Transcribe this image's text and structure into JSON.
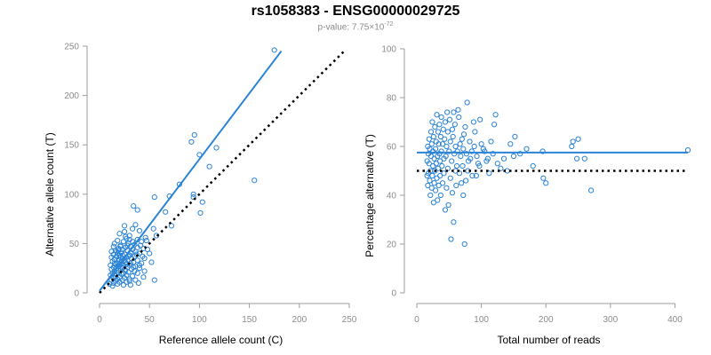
{
  "title": "rs1058383 - ENSG00000029725",
  "subtitle_prefix": "p-value: 7.75×10",
  "subtitle_exponent": "-72",
  "colors": {
    "point": "#2b83d6",
    "fit": "#2b83d6",
    "reference": "#000000",
    "axis": "#9e9e9e"
  },
  "chart_data": [
    {
      "type": "scatter",
      "xlabel": "Reference allele count (C)",
      "ylabel": "Alternative allele count (T)",
      "xlim": [
        0,
        250
      ],
      "ylim": [
        0,
        250
      ],
      "x_ticks": [
        0,
        50,
        100,
        150,
        200,
        250
      ],
      "y_ticks": [
        0,
        50,
        100,
        150,
        200,
        250
      ],
      "fit_line": {
        "x": [
          0,
          182
        ],
        "y": [
          2,
          245
        ]
      },
      "reference_line": {
        "x": [
          0,
          245
        ],
        "y": [
          0,
          245
        ]
      },
      "points": [
        [
          175,
          246
        ],
        [
          95,
          160
        ],
        [
          92,
          153
        ],
        [
          100,
          140
        ],
        [
          117,
          147
        ],
        [
          110,
          128
        ],
        [
          155,
          114
        ],
        [
          80,
          110
        ],
        [
          70,
          98
        ],
        [
          55,
          97
        ],
        [
          94,
          100
        ],
        [
          94,
          97
        ],
        [
          103,
          92
        ],
        [
          101,
          81
        ],
        [
          66,
          82
        ],
        [
          72,
          68
        ],
        [
          54,
          65
        ],
        [
          57,
          58
        ],
        [
          34,
          88
        ],
        [
          38,
          84
        ],
        [
          25,
          68
        ],
        [
          33,
          65
        ],
        [
          40,
          63
        ],
        [
          20,
          60
        ],
        [
          30,
          58
        ],
        [
          46,
          56
        ],
        [
          27,
          55
        ],
        [
          38,
          54
        ],
        [
          18,
          53
        ],
        [
          24,
          52
        ],
        [
          42,
          52
        ],
        [
          15,
          50
        ],
        [
          29,
          50
        ],
        [
          35,
          49
        ],
        [
          21,
          48
        ],
        [
          31,
          47
        ],
        [
          14,
          47
        ],
        [
          26,
          46
        ],
        [
          38,
          46
        ],
        [
          19,
          45
        ],
        [
          44,
          45
        ],
        [
          23,
          44
        ],
        [
          33,
          44
        ],
        [
          16,
          43
        ],
        [
          28,
          43
        ],
        [
          12,
          42
        ],
        [
          36,
          42
        ],
        [
          22,
          41
        ],
        [
          31,
          41
        ],
        [
          18,
          40
        ],
        [
          40,
          40
        ],
        [
          25,
          39
        ],
        [
          14,
          39
        ],
        [
          30,
          38
        ],
        [
          20,
          38
        ],
        [
          35,
          37
        ],
        [
          17,
          37
        ],
        [
          27,
          36
        ],
        [
          12,
          36
        ],
        [
          23,
          35
        ],
        [
          45,
          35
        ],
        [
          32,
          35
        ],
        [
          19,
          34
        ],
        [
          15,
          34
        ],
        [
          28,
          33
        ],
        [
          38,
          33
        ],
        [
          22,
          32
        ],
        [
          13,
          32
        ],
        [
          26,
          31
        ],
        [
          34,
          31
        ],
        [
          18,
          30
        ],
        [
          42,
          30
        ],
        [
          21,
          29
        ],
        [
          16,
          29
        ],
        [
          30,
          28
        ],
        [
          11,
          28
        ],
        [
          24,
          28
        ],
        [
          36,
          27
        ],
        [
          19,
          27
        ],
        [
          14,
          26
        ],
        [
          28,
          26
        ],
        [
          23,
          25
        ],
        [
          40,
          25
        ],
        [
          17,
          25
        ],
        [
          32,
          24
        ],
        [
          12,
          24
        ],
        [
          21,
          23
        ],
        [
          26,
          23
        ],
        [
          15,
          22
        ],
        [
          35,
          22
        ],
        [
          19,
          21
        ],
        [
          29,
          21
        ],
        [
          13,
          20
        ],
        [
          24,
          20
        ],
        [
          38,
          20
        ],
        [
          17,
          19
        ],
        [
          22,
          19
        ],
        [
          11,
          18
        ],
        [
          27,
          18
        ],
        [
          33,
          17
        ],
        [
          16,
          17
        ],
        [
          20,
          16
        ],
        [
          14,
          15
        ],
        [
          25,
          15
        ],
        [
          30,
          14
        ],
        [
          18,
          14
        ],
        [
          12,
          13
        ],
        [
          23,
          13
        ],
        [
          36,
          13
        ],
        [
          16,
          12
        ],
        [
          20,
          11
        ],
        [
          27,
          11
        ],
        [
          14,
          10
        ],
        [
          10,
          9
        ],
        [
          18,
          9
        ],
        [
          24,
          8
        ],
        [
          13,
          7
        ],
        [
          30,
          12
        ],
        [
          22,
          26
        ],
        [
          25,
          33
        ],
        [
          29,
          37
        ],
        [
          17,
          42
        ],
        [
          21,
          47
        ],
        [
          33,
          52
        ],
        [
          26,
          57
        ],
        [
          41,
          48
        ],
        [
          37,
          39
        ],
        [
          31,
          30
        ],
        [
          34,
          26
        ],
        [
          43,
          37
        ],
        [
          20,
          33
        ],
        [
          15,
          30
        ],
        [
          27,
          29
        ],
        [
          23,
          38
        ],
        [
          19,
          43
        ],
        [
          28,
          48
        ],
        [
          30,
          54
        ],
        [
          25,
          62
        ],
        [
          36,
          69
        ],
        [
          48,
          44
        ],
        [
          52,
          31
        ],
        [
          55,
          13
        ],
        [
          39,
          10
        ],
        [
          31,
          8
        ],
        [
          44,
          16
        ],
        [
          40,
          28
        ],
        [
          45,
          22
        ],
        [
          50,
          40
        ],
        [
          47,
          53
        ],
        [
          21,
          36
        ]
      ]
    },
    {
      "type": "scatter",
      "xlabel": "Total number of reads",
      "ylabel": "Percentage alternative (T)",
      "xlim": [
        0,
        420
      ],
      "ylim": [
        0,
        100
      ],
      "x_ticks": [
        0,
        100,
        200,
        300,
        400
      ],
      "y_ticks": [
        0,
        20,
        40,
        60,
        80,
        100
      ],
      "fit_line": {
        "x": [
          0,
          420
        ],
        "y": [
          57.5,
          57.5
        ]
      },
      "reference_line": {
        "x": [
          0,
          420
        ],
        "y": [
          50,
          50
        ]
      },
      "points": [
        [
          420,
          58.5
        ],
        [
          270,
          42
        ],
        [
          260,
          55
        ],
        [
          250,
          63
        ],
        [
          242,
          62
        ],
        [
          248,
          55
        ],
        [
          240,
          60
        ],
        [
          200,
          45
        ],
        [
          196,
          47
        ],
        [
          195,
          58
        ],
        [
          180,
          52
        ],
        [
          170,
          59
        ],
        [
          152,
          64
        ],
        [
          150,
          56
        ],
        [
          140,
          50
        ],
        [
          130,
          51
        ],
        [
          122,
          73
        ],
        [
          120,
          69
        ],
        [
          115,
          62
        ],
        [
          110,
          55
        ],
        [
          105,
          58
        ],
        [
          100,
          61
        ],
        [
          98,
          71
        ],
        [
          95,
          53
        ],
        [
          92,
          48
        ],
        [
          90,
          66
        ],
        [
          88,
          70
        ],
        [
          85,
          58
        ],
        [
          82,
          62
        ],
        [
          80,
          54
        ],
        [
          78,
          78
        ],
        [
          76,
          46
        ],
        [
          75,
          68
        ],
        [
          74,
          20
        ],
        [
          72,
          40
        ],
        [
          72,
          59
        ],
        [
          70,
          63
        ],
        [
          68,
          56
        ],
        [
          66,
          49
        ],
        [
          65,
          72
        ],
        [
          64,
          75
        ],
        [
          62,
          52
        ],
        [
          61,
          44
        ],
        [
          60,
          60
        ],
        [
          59,
          69
        ],
        [
          58,
          57
        ],
        [
          57,
          29
        ],
        [
          56,
          64
        ],
        [
          55,
          41
        ],
        [
          54,
          54
        ],
        [
          53,
          22
        ],
        [
          52,
          47
        ],
        [
          52,
          62
        ],
        [
          51,
          71
        ],
        [
          50,
          58
        ],
        [
          49,
          36
        ],
        [
          48,
          66
        ],
        [
          48,
          51
        ],
        [
          47,
          74
        ],
        [
          46,
          43
        ],
        [
          46,
          60
        ],
        [
          45,
          56
        ],
        [
          44,
          34
        ],
        [
          44,
          70
        ],
        [
          43,
          63
        ],
        [
          42,
          49
        ],
        [
          42,
          55
        ],
        [
          41,
          67
        ],
        [
          40,
          45
        ],
        [
          40,
          61
        ],
        [
          39,
          52
        ],
        [
          38,
          72
        ],
        [
          38,
          58
        ],
        [
          37,
          40
        ],
        [
          37,
          64
        ],
        [
          36,
          54
        ],
        [
          36,
          48
        ],
        [
          35,
          69
        ],
        [
          35,
          57
        ],
        [
          34,
          44
        ],
        [
          34,
          61
        ],
        [
          33,
          51
        ],
        [
          33,
          66
        ],
        [
          32,
          38
        ],
        [
          32,
          56
        ],
        [
          31,
          73
        ],
        [
          31,
          47
        ],
        [
          30,
          62
        ],
        [
          30,
          53
        ],
        [
          29,
          42
        ],
        [
          29,
          59
        ],
        [
          28,
          68
        ],
        [
          28,
          50
        ],
        [
          27,
          55
        ],
        [
          27,
          45
        ],
        [
          26,
          64
        ],
        [
          26,
          37
        ],
        [
          25,
          58
        ],
        [
          25,
          52
        ],
        [
          24,
          70
        ],
        [
          24,
          48
        ],
        [
          23,
          61
        ],
        [
          23,
          43
        ],
        [
          22,
          56
        ],
        [
          22,
          66
        ],
        [
          21,
          50
        ],
        [
          21,
          40
        ],
        [
          20,
          59
        ],
        [
          20,
          46
        ],
        [
          19,
          63
        ],
        [
          19,
          53
        ],
        [
          18,
          57
        ],
        [
          18,
          49
        ],
        [
          17,
          60
        ],
        [
          17,
          44
        ],
        [
          16,
          54
        ],
        [
          16,
          48
        ],
        [
          55,
          67
        ],
        [
          57,
          74
        ],
        [
          60,
          50
        ],
        [
          63,
          58
        ],
        [
          67,
          61
        ],
        [
          69,
          45
        ],
        [
          71,
          52
        ],
        [
          73,
          65
        ],
        [
          77,
          57
        ],
        [
          79,
          50
        ],
        [
          83,
          55
        ],
        [
          86,
          48
        ],
        [
          89,
          60
        ],
        [
          93,
          56
        ],
        [
          97,
          52
        ],
        [
          103,
          59
        ],
        [
          108,
          54
        ],
        [
          112,
          49
        ],
        [
          118,
          57
        ],
        [
          125,
          53
        ],
        [
          135,
          55
        ],
        [
          145,
          61
        ],
        [
          160,
          57
        ]
      ]
    }
  ]
}
